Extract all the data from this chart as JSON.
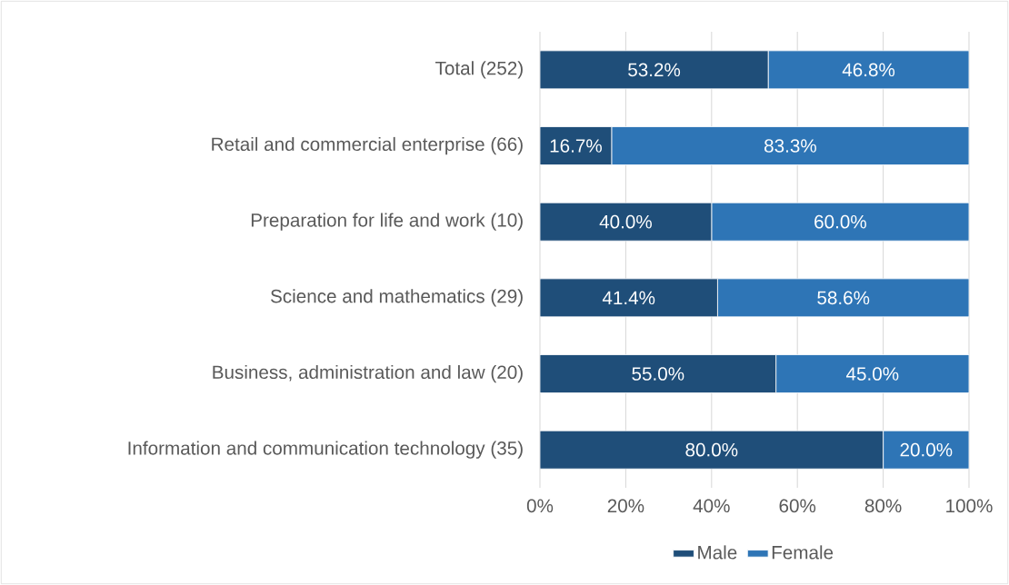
{
  "chart_data": {
    "type": "bar",
    "orientation": "horizontal",
    "stacked": true,
    "categories": [
      "Total (252)",
      "Retail and commercial enterprise (66)",
      "Preparation for life and work (10)",
      "Science and mathematics (29)",
      "Business, administration and law (20)",
      "Information and communication technology (35)"
    ],
    "series": [
      {
        "name": "Male",
        "color": "#1f4e79",
        "values": [
          53.2,
          16.7,
          40.0,
          41.4,
          55.0,
          80.0
        ],
        "value_labels": [
          "53.2%",
          "16.7%",
          "40.0%",
          "41.4%",
          "55.0%",
          "80.0%"
        ]
      },
      {
        "name": "Female",
        "color": "#2e75b6",
        "values": [
          46.8,
          83.3,
          60.0,
          58.6,
          45.0,
          20.0
        ],
        "value_labels": [
          "46.8%",
          "83.3%",
          "60.0%",
          "58.6%",
          "45.0%",
          "20.0%"
        ]
      }
    ],
    "xlim": [
      0,
      100
    ],
    "xticks": [
      {
        "value": 0,
        "label": "0%"
      },
      {
        "value": 20,
        "label": "20%"
      },
      {
        "value": 40,
        "label": "40%"
      },
      {
        "value": 60,
        "label": "60%"
      },
      {
        "value": 80,
        "label": "80%"
      },
      {
        "value": 100,
        "label": "100%"
      }
    ],
    "grid": "x",
    "legend": "bottom"
  }
}
